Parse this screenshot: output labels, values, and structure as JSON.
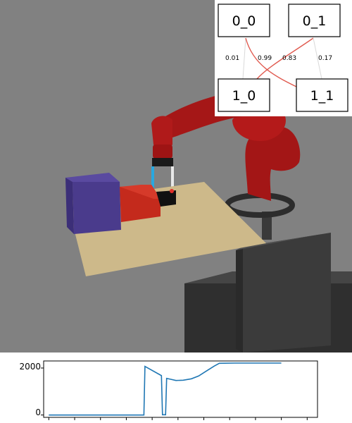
{
  "graph": {
    "nodes": [
      {
        "id": "0_0",
        "label": "0_0"
      },
      {
        "id": "0_1",
        "label": "0_1"
      },
      {
        "id": "1_0",
        "label": "1_0"
      },
      {
        "id": "1_1",
        "label": "1_1"
      }
    ],
    "edges": [
      {
        "from": "0_0",
        "to": "1_0",
        "weight": "0.01",
        "color": "#d9d9d9"
      },
      {
        "from": "0_0",
        "to": "1_1",
        "weight": "0.99",
        "color": "#e05a4f"
      },
      {
        "from": "0_1",
        "to": "1_0",
        "weight": "0.83",
        "color": "#e05a4f"
      },
      {
        "from": "0_1",
        "to": "1_1",
        "weight": "0.17",
        "color": "#d9d9d9"
      }
    ]
  },
  "colors": {
    "robot_red": "#a31616",
    "purple_box": "#4a3b8c",
    "red_box": "#c42a1c",
    "table": "#cdb98a",
    "pedestal": "#3a3a3a",
    "background": "#808080",
    "line": "#1f77b4"
  },
  "chart_data": {
    "type": "line",
    "yticks": [
      "0",
      "2000"
    ],
    "ylim": [
      -100,
      2300
    ],
    "xlim": [
      -5,
      260
    ],
    "series": [
      {
        "color": "#1f77b4",
        "points": [
          [
            0,
            0
          ],
          [
            90,
            0
          ],
          [
            92,
            0
          ],
          [
            93,
            2070
          ],
          [
            108,
            1700
          ],
          [
            109,
            1680
          ],
          [
            110,
            10
          ],
          [
            113,
            10
          ],
          [
            114,
            1560
          ],
          [
            118,
            1520
          ],
          [
            123,
            1470
          ],
          [
            130,
            1480
          ],
          [
            138,
            1540
          ],
          [
            145,
            1660
          ],
          [
            152,
            1860
          ],
          [
            160,
            2080
          ],
          [
            165,
            2200
          ],
          [
            180,
            2210
          ],
          [
            200,
            2210
          ],
          [
            215,
            2210
          ],
          [
            225,
            2210
          ]
        ]
      }
    ]
  }
}
